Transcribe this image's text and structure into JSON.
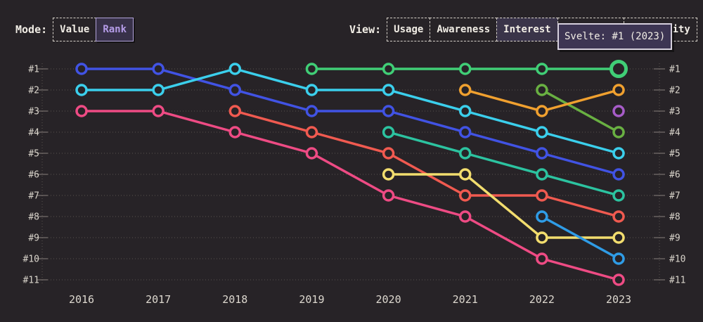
{
  "mode_bar": {
    "label": "Mode:",
    "options": [
      {
        "label": "Value",
        "selected": false
      },
      {
        "label": "Rank",
        "selected": true
      }
    ]
  },
  "view_bar": {
    "label": "View:",
    "options": [
      {
        "label": "Usage",
        "selected": false
      },
      {
        "label": "Awareness",
        "selected": false
      },
      {
        "label": "Interest",
        "selected": true
      },
      {
        "label": "Retention",
        "selected": false
      },
      {
        "label": "Positivity",
        "selected": false
      }
    ]
  },
  "tooltip": {
    "text": "Svelte: #1 (2023)",
    "series": "Svelte",
    "year": 2023,
    "rank": 1
  },
  "colors": {
    "background": "#272327",
    "text": "#f1ede5",
    "grid": "#5a534f",
    "tick": "#8a827c",
    "axis_label": "#d8d3ca",
    "year_label": "#ddd8cf",
    "selected_view_bg": "#3a3449",
    "selected_mode_bg": "#383149",
    "selected_mode_text": "#b59ce8",
    "tooltip_bg": "#3d3553",
    "tooltip_border": "#d6d0dd"
  },
  "chart_data": {
    "type": "line",
    "subtype": "bump-rank",
    "x": [
      2016,
      2017,
      2018,
      2019,
      2020,
      2021,
      2022,
      2023
    ],
    "rank_labels": [
      "#1",
      "#2",
      "#3",
      "#4",
      "#5",
      "#6",
      "#7",
      "#8",
      "#9",
      "#10",
      "#11"
    ],
    "y_axis": "rank (1 = best, shown on both sides)",
    "grid": "dotted horizontal lines per rank",
    "highlight": {
      "series": "Svelte",
      "year": 2023,
      "rank": 1
    },
    "series": [
      {
        "name": "blue",
        "color": "#4153e4",
        "ranks": [
          1,
          1,
          2,
          3,
          3,
          4,
          5,
          6
        ]
      },
      {
        "name": "cyan",
        "color": "#3bcfec",
        "ranks": [
          2,
          2,
          1,
          2,
          2,
          3,
          4,
          5
        ]
      },
      {
        "name": "pink",
        "color": "#ee4b84",
        "ranks": [
          3,
          3,
          4,
          5,
          7,
          8,
          10,
          11
        ]
      },
      {
        "name": "salmon",
        "color": "#f05a50",
        "ranks": [
          null,
          null,
          3,
          4,
          5,
          7,
          7,
          8
        ]
      },
      {
        "name": "Svelte",
        "color": "#40ce76",
        "ranks": [
          null,
          null,
          null,
          1,
          1,
          1,
          1,
          1
        ]
      },
      {
        "name": "teal",
        "color": "#2cc3a0",
        "ranks": [
          null,
          null,
          null,
          null,
          4,
          5,
          6,
          7
        ]
      },
      {
        "name": "yellow",
        "color": "#f2dd6e",
        "ranks": [
          null,
          null,
          null,
          null,
          6,
          6,
          9,
          9
        ]
      },
      {
        "name": "green",
        "color": "#69b042",
        "ranks": [
          null,
          null,
          null,
          null,
          null,
          null,
          2,
          4
        ]
      },
      {
        "name": "orange",
        "color": "#f0a02f",
        "ranks": [
          null,
          null,
          null,
          null,
          null,
          2,
          3,
          2
        ]
      },
      {
        "name": "sky-blue",
        "color": "#2f9ce6",
        "ranks": [
          null,
          null,
          null,
          null,
          null,
          null,
          8,
          10
        ]
      },
      {
        "name": "purple",
        "color": "#a75cc8",
        "ranks": [
          null,
          null,
          null,
          null,
          null,
          null,
          null,
          3
        ]
      }
    ]
  }
}
